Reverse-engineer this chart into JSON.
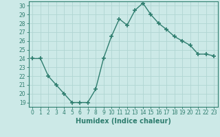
{
  "x": [
    0,
    1,
    2,
    3,
    4,
    5,
    6,
    7,
    8,
    9,
    10,
    11,
    12,
    13,
    14,
    15,
    16,
    17,
    18,
    19,
    20,
    21,
    22,
    23
  ],
  "y": [
    24,
    24,
    22,
    21,
    20,
    19,
    19,
    19,
    20.5,
    24,
    26.5,
    28.5,
    27.8,
    29.5,
    30.3,
    29,
    28,
    27.3,
    26.5,
    26,
    25.5,
    24.5,
    24.5,
    24.3
  ],
  "line_color": "#2e7d6e",
  "marker": "+",
  "marker_size": 4,
  "marker_lw": 1.2,
  "bg_color": "#cce9e7",
  "grid_color": "#b0d5d2",
  "xlabel": "Humidex (Indice chaleur)",
  "xlim": [
    -0.5,
    23.5
  ],
  "ylim": [
    18.5,
    30.5
  ],
  "yticks": [
    19,
    20,
    21,
    22,
    23,
    24,
    25,
    26,
    27,
    28,
    29,
    30
  ],
  "xticks": [
    0,
    1,
    2,
    3,
    4,
    5,
    6,
    7,
    8,
    9,
    10,
    11,
    12,
    13,
    14,
    15,
    16,
    17,
    18,
    19,
    20,
    21,
    22,
    23
  ],
  "tick_label_color": "#2e7d6e",
  "axis_color": "#2e7d6e",
  "xlabel_color": "#2e7d6e",
  "xlabel_fontsize": 7,
  "tick_fontsize": 5.5,
  "line_width": 1.0
}
